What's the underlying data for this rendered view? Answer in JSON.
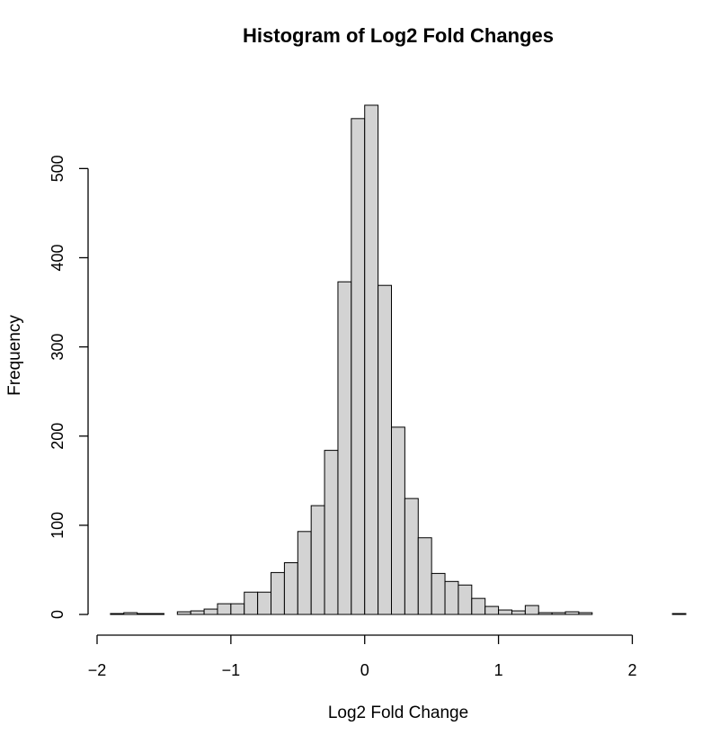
{
  "chart_data": {
    "type": "bar",
    "title": "Histogram of Log2 Fold Changes",
    "xlabel": "Log2 Fold Change",
    "ylabel": "Frequency",
    "bin_width": 0.1,
    "xlim": [
      -2,
      2.4
    ],
    "ylim": [
      0,
      575
    ],
    "x_ticks": [
      -2,
      -1,
      0,
      1,
      2
    ],
    "x_tick_labels": [
      "−2",
      "−1",
      "0",
      "1",
      "2"
    ],
    "y_ticks": [
      0,
      100,
      200,
      300,
      400,
      500
    ],
    "y_tick_labels": [
      "0",
      "100",
      "200",
      "300",
      "400",
      "500"
    ],
    "bin_starts": [
      -1.9,
      -1.8,
      -1.7,
      -1.6,
      -1.5,
      -1.4,
      -1.3,
      -1.2,
      -1.1,
      -1.0,
      -0.9,
      -0.8,
      -0.7,
      -0.6,
      -0.5,
      -0.4,
      -0.3,
      -0.2,
      -0.1,
      0.0,
      0.1,
      0.2,
      0.3,
      0.4,
      0.5,
      0.6,
      0.7,
      0.8,
      0.9,
      1.0,
      1.1,
      1.2,
      1.3,
      1.4,
      1.5,
      1.6,
      1.7,
      1.8,
      1.9,
      2.0,
      2.1,
      2.2,
      2.3
    ],
    "values": [
      1,
      2,
      1,
      1,
      0,
      3,
      4,
      6,
      12,
      12,
      25,
      25,
      47,
      58,
      93,
      122,
      184,
      373,
      556,
      571,
      369,
      210,
      130,
      86,
      46,
      37,
      33,
      18,
      9,
      5,
      4,
      10,
      2,
      2,
      3,
      2,
      0,
      0,
      0,
      0,
      0,
      0,
      1
    ],
    "grid": false,
    "legend": "none"
  }
}
